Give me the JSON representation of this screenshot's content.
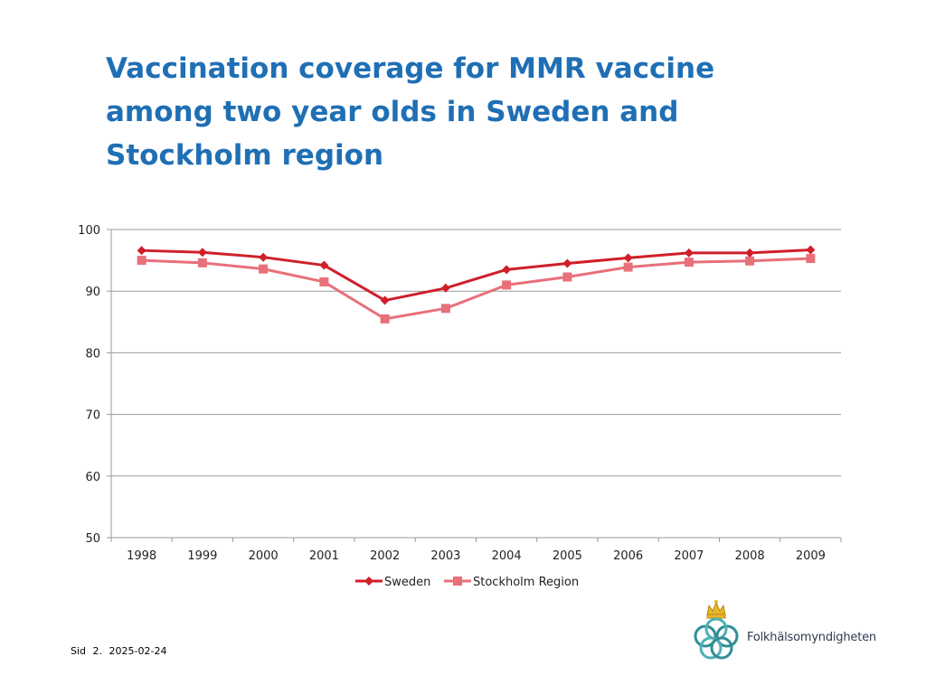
{
  "chart_data": {
    "type": "line",
    "title": "Vaccination coverage for MMR vaccine among two year olds in Sweden and Stockholm region",
    "title_lines": [
      "Vaccination coverage for MMR vaccine",
      "among two year olds in Sweden and",
      "Stockholm region"
    ],
    "categories": [
      "1998",
      "1999",
      "2000",
      "2001",
      "2002",
      "2003",
      "2004",
      "2005",
      "2006",
      "2007",
      "2008",
      "2009"
    ],
    "series": [
      {
        "name": "Sweden",
        "color": "#d01f2a",
        "marker": "diamond",
        "values": [
          96.6,
          96.3,
          95.5,
          94.2,
          88.5,
          90.5,
          93.5,
          94.5,
          95.4,
          96.2,
          96.2,
          96.7
        ]
      },
      {
        "name": "Stockholm Region",
        "color": "#e8707a",
        "marker": "square",
        "values": [
          95.0,
          94.6,
          93.6,
          91.5,
          85.5,
          87.2,
          91.0,
          92.3,
          93.9,
          94.7,
          94.9,
          95.3
        ]
      }
    ],
    "yticks": [
      "100",
      "90",
      "80",
      "70",
      "60",
      "50"
    ],
    "ylim": [
      50,
      100
    ],
    "xlabel": "",
    "ylabel": "",
    "grid": true,
    "legend": "bottom"
  },
  "footer": {
    "label": "Sid",
    "page": "2.",
    "date": "2025-02-24"
  },
  "logo": {
    "text": "Folkhälsomyndigheten"
  },
  "colors": {
    "title": "#1f6fb5",
    "grid": "#9a9a9a"
  }
}
